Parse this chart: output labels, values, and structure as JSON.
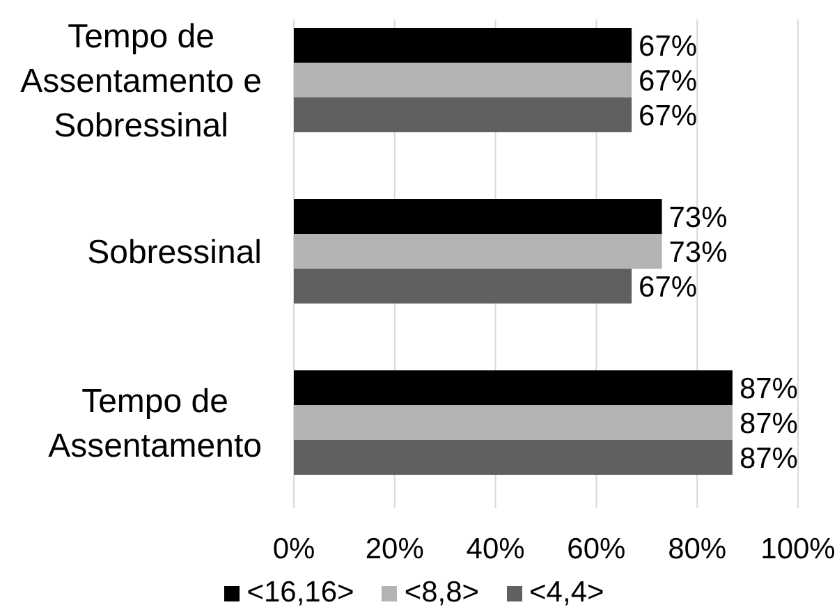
{
  "chart_data": {
    "type": "bar",
    "orientation": "horizontal",
    "categories": [
      "Tempo de Assentamento e Sobressinal",
      "Sobressinal",
      "Tempo de Assentamento"
    ],
    "series": [
      {
        "name": "<16,16>",
        "color": "#000000",
        "values": [
          67,
          73,
          87
        ],
        "value_labels": [
          "67%",
          "73%",
          "87%"
        ]
      },
      {
        "name": "<8,8>",
        "color": "#b3b3b3",
        "values": [
          67,
          73,
          87
        ],
        "value_labels": [
          "67%",
          "73%",
          "87%"
        ]
      },
      {
        "name": "<4,4>",
        "color": "#606060",
        "values": [
          67,
          67,
          87
        ],
        "value_labels": [
          "67%",
          "67%",
          "87%"
        ]
      }
    ],
    "xlim": [
      0,
      100
    ],
    "xticks": [
      {
        "value": 0,
        "label": "0%"
      },
      {
        "value": 20,
        "label": "20%"
      },
      {
        "value": 40,
        "label": "40%"
      },
      {
        "value": 60,
        "label": "60%"
      },
      {
        "value": 80,
        "label": "80%"
      },
      {
        "value": 100,
        "label": "100%"
      }
    ],
    "grid": "x",
    "legend": "bottom"
  }
}
